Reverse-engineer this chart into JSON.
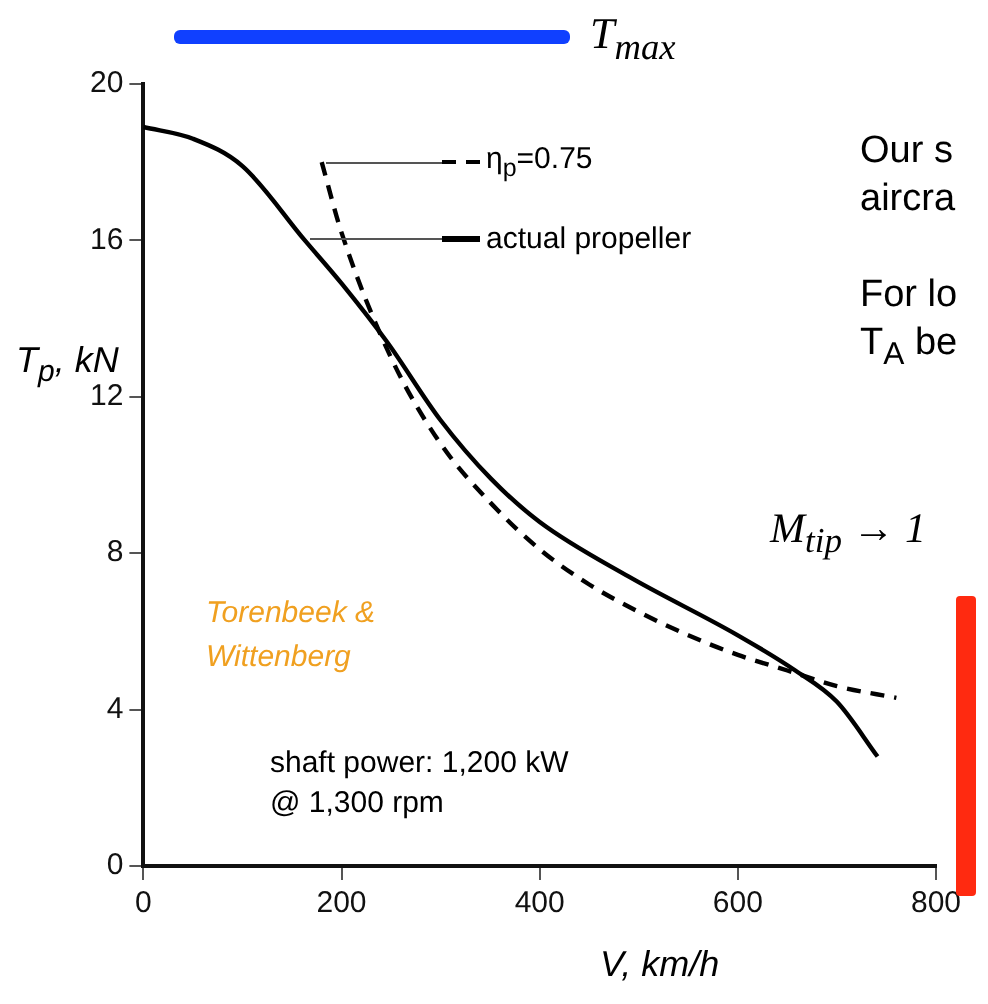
{
  "chart_data": {
    "type": "line",
    "xlabel": "V, km/h",
    "ylabel": "T$_{p}$, kN",
    "series": [
      {
        "name": "actual propeller",
        "color": "#000000",
        "line_style": "solid",
        "x": [
          0,
          50,
          100,
          163,
          200,
          246,
          300,
          351,
          400,
          490,
          600,
          658,
          700,
          741
        ],
        "values": [
          18.9,
          18.6,
          17.9,
          16.0,
          14.9,
          13.4,
          11.4,
          9.9,
          8.8,
          7.4,
          5.9,
          5.0,
          4.2,
          2.8
        ]
      },
      {
        "name": "η$_{p}$=0.75",
        "color": "#000000",
        "line_style": "dashed",
        "x": [
          180,
          200,
          250,
          300,
          350,
          400,
          450,
          500,
          550,
          600,
          650,
          700,
          760
        ],
        "values": [
          18.0,
          16.2,
          13.0,
          10.8,
          9.3,
          8.1,
          7.2,
          6.5,
          5.9,
          5.4,
          5.0,
          4.6,
          4.3
        ]
      }
    ],
    "xlim": [
      0,
      800
    ],
    "xticks": [
      0,
      200,
      400,
      600,
      800
    ],
    "ylim": [
      0,
      20
    ],
    "yticks": [
      0,
      4,
      8,
      12,
      16,
      20
    ],
    "grid": false,
    "legend": "top",
    "marker": "none",
    "annotations": [
      "Torenbeek & Wittenberg",
      "shaft power: 1,200 kW\n@ 1,300 rpm",
      "T$_{max}$",
      "Our s\naircra",
      "For lo\nT$_{A}$ be",
      "M$_{tip}$ → 1"
    ]
  }
}
